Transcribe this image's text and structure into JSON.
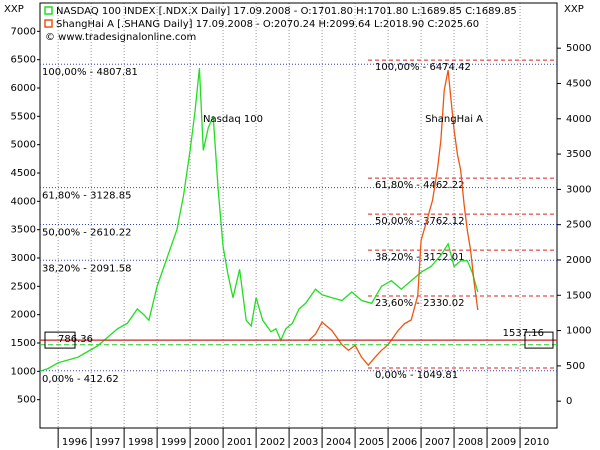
{
  "chart_data": {
    "type": "line",
    "y_label": "XXP",
    "y2_label": "XXP",
    "copyright": "© www.tradesignalonline.com",
    "annotations": [
      {
        "text": "Nasdaq 100",
        "x": 2001.3,
        "y": 5450
      },
      {
        "text": "ShangHai A",
        "x": 2008.0,
        "y": 5450
      }
    ],
    "xlim": [
      1995.45,
      2011.12
    ],
    "xticks": [
      1996,
      1997,
      1998,
      1999,
      2000,
      2001,
      2002,
      2003,
      2004,
      2005,
      2006,
      2007,
      2008,
      2009,
      2010
    ],
    "ylim": [
      0,
      7500
    ],
    "yticks": [
      500,
      1000,
      1500,
      2000,
      2500,
      3000,
      3500,
      4000,
      4500,
      5000,
      5500,
      6000,
      6500,
      7000
    ],
    "y2lim": [
      -380,
      5640
    ],
    "y2ticks": [
      0,
      500,
      1000,
      1500,
      2000,
      2500,
      3000,
      3500,
      4000,
      4500,
      5000
    ],
    "x_grid": true,
    "series": [
      {
        "name": "NASDAQ 100 INDEX [.NDX.X Daily] 17.09.2008 - O:1701.80 H:1701.80 L:1689.85 C:1689.85",
        "color": "#22dd22",
        "axis": "y",
        "x": [
          1995.45,
          1995.7,
          1996.0,
          1996.3,
          1996.6,
          1996.9,
          1997.2,
          1997.5,
          1997.8,
          1998.1,
          1998.4,
          1998.6,
          1998.75,
          1999.0,
          1999.3,
          1999.6,
          1999.8,
          2000.0,
          2000.15,
          2000.28,
          2000.4,
          2000.55,
          2000.7,
          2000.85,
          2001.0,
          2001.15,
          2001.3,
          2001.5,
          2001.7,
          2001.85,
          2002.0,
          2002.2,
          2002.45,
          2002.6,
          2002.75,
          2002.9,
          2003.1,
          2003.3,
          2003.5,
          2003.8,
          2004.0,
          2004.3,
          2004.6,
          2004.9,
          2005.2,
          2005.5,
          2005.8,
          2006.1,
          2006.4,
          2006.7,
          2007.0,
          2007.3,
          2007.6,
          2007.82,
          2008.0,
          2008.2,
          2008.4,
          2008.55,
          2008.72
        ],
        "values": [
          1000,
          1050,
          1150,
          1200,
          1250,
          1350,
          1450,
          1600,
          1750,
          1850,
          2100,
          2000,
          1900,
          2500,
          3000,
          3500,
          4100,
          4900,
          5600,
          6350,
          4900,
          5300,
          5500,
          4200,
          3200,
          2700,
          2300,
          2800,
          1900,
          1800,
          2300,
          1900,
          1700,
          1750,
          1550,
          1750,
          1850,
          2100,
          2200,
          2450,
          2350,
          2300,
          2250,
          2400,
          2250,
          2200,
          2500,
          2600,
          2450,
          2600,
          2750,
          2850,
          3050,
          3250,
          2850,
          2950,
          2950,
          2750,
          2400
        ]
      },
      {
        "name": "ShangHai A [.SHANG Daily] 17.09.2008 - O:2070.24 H:2099.64 L:2018.90 C:2025.60",
        "color": "#ee5511",
        "axis": "y2",
        "x": [
          2003.6,
          2003.8,
          2004.0,
          2004.3,
          2004.6,
          2004.8,
          2005.0,
          2005.2,
          2005.4,
          2005.6,
          2005.8,
          2006.0,
          2006.3,
          2006.5,
          2006.7,
          2006.9,
          2007.0,
          2007.2,
          2007.35,
          2007.5,
          2007.6,
          2007.7,
          2007.82,
          2007.9,
          2008.0,
          2008.1,
          2008.2,
          2008.3,
          2008.4,
          2008.5,
          2008.6,
          2008.72
        ],
        "values": [
          860,
          950,
          1120,
          1000,
          800,
          720,
          790,
          620,
          510,
          620,
          720,
          800,
          1000,
          1100,
          1150,
          1500,
          2280,
          2600,
          2850,
          3300,
          3700,
          4400,
          4690,
          4300,
          3840,
          3500,
          3270,
          2800,
          2420,
          2140,
          1710,
          1290
        ]
      }
    ],
    "fib_left": [
      {
        "label": "100,00% - 4807.81",
        "value": 6420
      },
      {
        "label": "61,80% - 3128.85",
        "value": 4242
      },
      {
        "label": "50,00% - 2610.22",
        "value": 3592
      },
      {
        "label": "38,20% - 2091.58",
        "value": 2960
      },
      {
        "label": "0,00% - 412.62",
        "value": 1010
      }
    ],
    "fib_right": [
      {
        "label": "100,00% - 6474.42",
        "value": 4830
      },
      {
        "label": "61,80% - 4462.22",
        "value": 3160
      },
      {
        "label": "50,00% - 3762.12",
        "value": 2650
      },
      {
        "label": "38,20% - 3122.01",
        "value": 2140
      },
      {
        "label": "23,60% - 2330.02",
        "value": 1490
      },
      {
        "label": "0,00% - 1049.81",
        "value": 470
      }
    ],
    "close_line": 1470,
    "level_line": {
      "value": 865,
      "left_label": "786.36",
      "right_label": "1537.16"
    }
  }
}
